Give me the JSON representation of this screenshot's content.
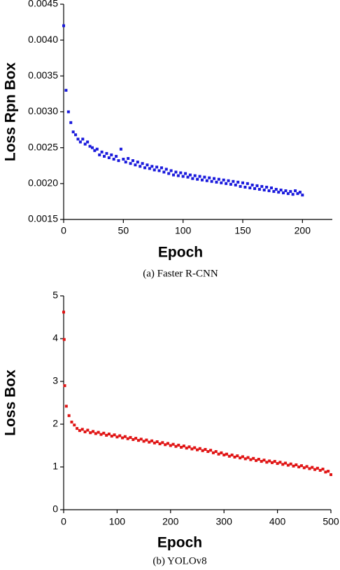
{
  "chart_data": [
    {
      "type": "scatter",
      "ylabel": "Loss Rpn Box",
      "xlabel": "Epoch",
      "caption": "(a) Faster R-CNN",
      "color": "#1a1adc",
      "xlim": [
        0,
        225
      ],
      "xticks": [
        0,
        50,
        100,
        150,
        200
      ],
      "ylim": [
        0.0015,
        0.0045
      ],
      "yticks": [
        0.0015,
        {
          "value": 0.002,
          "label": "0.0020"
        },
        0.0025,
        {
          "value": 0.003,
          "label": "0.0030"
        },
        0.0035,
        {
          "value": 0.004,
          "label": "0.0040"
        },
        0.0045
      ],
      "x": [
        0,
        2,
        4,
        6,
        8,
        10,
        12,
        14,
        16,
        18,
        20,
        22,
        24,
        26,
        28,
        30,
        32,
        34,
        36,
        38,
        40,
        42,
        44,
        46,
        48,
        50,
        52,
        54,
        56,
        58,
        60,
        62,
        64,
        66,
        68,
        70,
        72,
        74,
        76,
        78,
        80,
        82,
        84,
        86,
        88,
        90,
        92,
        94,
        96,
        98,
        100,
        102,
        104,
        106,
        108,
        110,
        112,
        114,
        116,
        118,
        120,
        122,
        124,
        126,
        128,
        130,
        132,
        134,
        136,
        138,
        140,
        142,
        144,
        146,
        148,
        150,
        152,
        154,
        156,
        158,
        160,
        162,
        164,
        166,
        168,
        170,
        172,
        174,
        176,
        178,
        180,
        182,
        184,
        186,
        188,
        190,
        192,
        194,
        196,
        198,
        200
      ],
      "values": [
        0.0042,
        0.0033,
        0.003,
        0.00285,
        0.00272,
        0.00268,
        0.00262,
        0.00258,
        0.00262,
        0.00255,
        0.00258,
        0.00252,
        0.0025,
        0.00246,
        0.00248,
        0.0024,
        0.00244,
        0.00238,
        0.00242,
        0.00236,
        0.0024,
        0.00234,
        0.00238,
        0.00232,
        0.00248,
        0.00234,
        0.0023,
        0.00235,
        0.00228,
        0.00232,
        0.00226,
        0.0023,
        0.00224,
        0.00228,
        0.00222,
        0.00226,
        0.00221,
        0.00224,
        0.00219,
        0.00223,
        0.00218,
        0.00222,
        0.00216,
        0.0022,
        0.00214,
        0.00218,
        0.00212,
        0.00216,
        0.00211,
        0.00215,
        0.0021,
        0.00214,
        0.00209,
        0.00212,
        0.00207,
        0.00211,
        0.00206,
        0.0021,
        0.00205,
        0.00209,
        0.00204,
        0.00208,
        0.00203,
        0.00207,
        0.00202,
        0.00206,
        0.00201,
        0.00205,
        0.002,
        0.00204,
        0.00199,
        0.00203,
        0.00198,
        0.00202,
        0.00196,
        0.00201,
        0.00195,
        0.002,
        0.00194,
        0.00198,
        0.00193,
        0.00197,
        0.00192,
        0.00196,
        0.00191,
        0.00195,
        0.0019,
        0.00194,
        0.00189,
        0.00192,
        0.00188,
        0.00191,
        0.00187,
        0.0019,
        0.00186,
        0.00189,
        0.00185,
        0.0019,
        0.00186,
        0.00188,
        0.00184
      ]
    },
    {
      "type": "scatter",
      "ylabel": "Loss Box",
      "xlabel": "Epoch",
      "caption": "(b) YOLOv8",
      "color": "#e01414",
      "xlim": [
        0,
        500
      ],
      "xticks": [
        0,
        100,
        200,
        300,
        400,
        500
      ],
      "ylim": [
        0,
        5
      ],
      "yticks": [
        0,
        1,
        2,
        3,
        4,
        5
      ],
      "x": [
        0,
        1,
        2,
        5,
        10,
        15,
        20,
        25,
        30,
        35,
        40,
        45,
        50,
        55,
        60,
        65,
        70,
        75,
        80,
        85,
        90,
        95,
        100,
        105,
        110,
        115,
        120,
        125,
        130,
        135,
        140,
        145,
        150,
        155,
        160,
        165,
        170,
        175,
        180,
        185,
        190,
        195,
        200,
        205,
        210,
        215,
        220,
        225,
        230,
        235,
        240,
        245,
        250,
        255,
        260,
        265,
        270,
        275,
        280,
        285,
        290,
        295,
        300,
        305,
        310,
        315,
        320,
        325,
        330,
        335,
        340,
        345,
        350,
        355,
        360,
        365,
        370,
        375,
        380,
        385,
        390,
        395,
        400,
        405,
        410,
        415,
        420,
        425,
        430,
        435,
        440,
        445,
        450,
        455,
        460,
        465,
        470,
        475,
        480,
        485,
        490,
        495,
        500
      ],
      "values": [
        4.62,
        3.98,
        2.9,
        2.42,
        2.2,
        2.05,
        1.98,
        1.9,
        1.85,
        1.88,
        1.82,
        1.86,
        1.8,
        1.83,
        1.78,
        1.81,
        1.76,
        1.79,
        1.74,
        1.77,
        1.72,
        1.75,
        1.7,
        1.73,
        1.68,
        1.71,
        1.66,
        1.69,
        1.64,
        1.67,
        1.62,
        1.65,
        1.6,
        1.63,
        1.58,
        1.61,
        1.56,
        1.59,
        1.54,
        1.57,
        1.52,
        1.55,
        1.5,
        1.53,
        1.48,
        1.51,
        1.46,
        1.49,
        1.44,
        1.47,
        1.42,
        1.45,
        1.4,
        1.43,
        1.38,
        1.41,
        1.36,
        1.39,
        1.33,
        1.36,
        1.3,
        1.33,
        1.28,
        1.3,
        1.25,
        1.28,
        1.23,
        1.26,
        1.21,
        1.24,
        1.19,
        1.22,
        1.17,
        1.2,
        1.15,
        1.18,
        1.13,
        1.16,
        1.11,
        1.14,
        1.1,
        1.13,
        1.08,
        1.11,
        1.06,
        1.09,
        1.04,
        1.07,
        1.02,
        1.05,
        1,
        1.03,
        0.98,
        1.01,
        0.96,
        0.99,
        0.94,
        0.97,
        0.92,
        0.95,
        0.88,
        0.9,
        0.82
      ]
    }
  ]
}
